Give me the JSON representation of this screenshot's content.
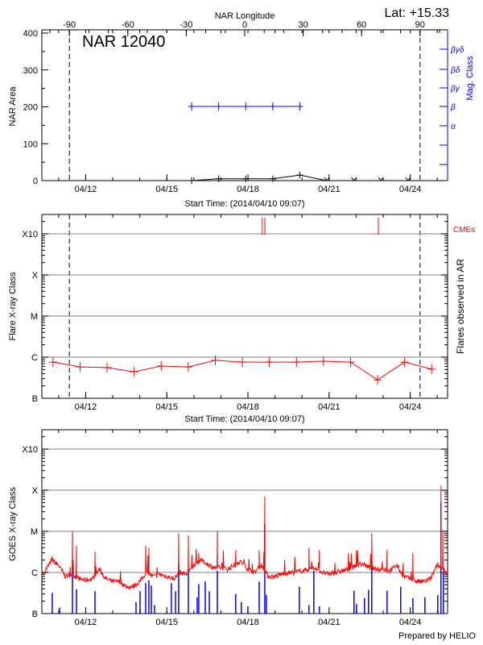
{
  "header": {
    "lat_label": "Lat: +15.33",
    "region_label": "NAR 12040",
    "footer": "Prepared by HELIO"
  },
  "colors": {
    "axis": "#000000",
    "grid": "#999999",
    "mag_class": "#0000ff",
    "flare": "#ff0000",
    "cme": "#ff0000",
    "goes_flux": "#ff0000",
    "goes_events": "#0000ff"
  },
  "chart_data": [
    {
      "type": "line",
      "title": "NAR 12040",
      "top_axis": {
        "label": "NAR Longitude",
        "ticks": [
          "-90",
          "-60",
          "-30",
          "0",
          "30",
          "60",
          "90"
        ],
        "range": [
          -104,
          104
        ]
      },
      "xlabel": "Start Time: (2014/04/10 09:07)",
      "xrange": [
        "2014-04-10 09:07",
        "2014-04-25 09:07"
      ],
      "xticks": [
        "04/12",
        "04/15",
        "04/18",
        "04/21",
        "04/24"
      ],
      "ylabel": "NAR Area",
      "ylim": [
        0,
        400
      ],
      "yticks": [
        "0",
        "100",
        "200",
        "300",
        "400"
      ],
      "right_axis": {
        "label": "Mag. Class",
        "ticks": [
          "α",
          "β",
          "βγ",
          "βδ",
          "βγδ"
        ]
      },
      "limb_longitudes": [
        -90,
        90
      ],
      "area_series": {
        "x": [
          "2014-04-15 22:00",
          "2014-04-16 22:00",
          "2014-04-17 22:00",
          "2014-04-18 22:00",
          "2014-04-19 22:00",
          "2014-04-20 22:00",
          "2014-04-21 22:00",
          "2014-04-22 22:00",
          "2014-04-23 22:00"
        ],
        "values": [
          0,
          5,
          5,
          5,
          15,
          0,
          0,
          0,
          0
        ],
        "flagged_zero": [
          false,
          false,
          false,
          false,
          false,
          true,
          true,
          true,
          true
        ]
      },
      "mag_class_series": {
        "x": [
          "2014-04-15 22:00",
          "2014-04-16 22:00",
          "2014-04-17 22:00",
          "2014-04-18 22:00",
          "2014-04-19 22:00"
        ],
        "values": [
          "β",
          "β",
          "β",
          "β",
          "β"
        ]
      }
    },
    {
      "type": "line",
      "xlabel": "Start Time: (2014/04/10 09:07)",
      "xticks": [
        "04/12",
        "04/15",
        "04/18",
        "04/21",
        "04/24"
      ],
      "ylabel": "Flare X-ray Class",
      "yscale": "log",
      "yticks": [
        "B",
        "C",
        "M",
        "X",
        "X10"
      ],
      "right_label": "Flares observed in AR",
      "cme_label": "CMEs",
      "grid": true,
      "flare_series": {
        "x": [
          "2014-04-10 19:00",
          "2014-04-11 19:00",
          "2014-04-12 19:00",
          "2014-04-13 19:00",
          "2014-04-14 19:00",
          "2014-04-15 19:00",
          "2014-04-16 19:00",
          "2014-04-17 19:00",
          "2014-04-18 19:00",
          "2014-04-19 19:00",
          "2014-04-20 19:00",
          "2014-04-21 19:00",
          "2014-04-22 19:00",
          "2014-04-23 19:00",
          "2014-04-24 19:00"
        ],
        "values": [
          "B7.6",
          "B5.8",
          "B5.6",
          "B4.4",
          "B6.1",
          "B5.8",
          "B8.4",
          "B7.6",
          "B7.6",
          "B7.6",
          "B8.0",
          "B7.6",
          "B2.8",
          "B7.6",
          "B5.1"
        ]
      },
      "cmes": [
        "2014-04-18 12:40",
        "2014-04-18 15:00",
        "2014-04-22 19:40"
      ]
    },
    {
      "type": "line",
      "xticks": [
        "04/12",
        "04/15",
        "04/18",
        "04/21",
        "04/24"
      ],
      "ylabel": "GOES X-ray Class",
      "yscale": "log",
      "yticks": [
        "B",
        "C",
        "M",
        "X",
        "X10"
      ],
      "grid": true,
      "goes_flux": {
        "x": [
          "2014-04-10 12:00",
          "2014-04-10 18:00",
          "2014-04-11 00:00",
          "2014-04-11 06:00",
          "2014-04-11 12:00",
          "2014-04-11 18:00",
          "2014-04-12 00:00",
          "2014-04-12 06:00",
          "2014-04-12 12:00",
          "2014-04-12 18:00",
          "2014-04-13 00:00",
          "2014-04-13 06:00",
          "2014-04-13 12:00",
          "2014-04-13 18:00",
          "2014-04-14 00:00",
          "2014-04-14 06:00",
          "2014-04-14 12:00",
          "2014-04-14 18:00",
          "2014-04-15 00:00",
          "2014-04-15 06:00",
          "2014-04-15 12:00",
          "2014-04-15 18:00",
          "2014-04-16 00:00",
          "2014-04-16 06:00",
          "2014-04-16 12:00",
          "2014-04-16 18:00",
          "2014-04-17 00:00",
          "2014-04-17 06:00",
          "2014-04-17 12:00",
          "2014-04-17 18:00",
          "2014-04-18 00:00",
          "2014-04-18 06:00",
          "2014-04-18 12:00",
          "2014-04-18 18:00",
          "2014-04-19 00:00",
          "2014-04-19 06:00",
          "2014-04-19 12:00",
          "2014-04-19 18:00",
          "2014-04-20 00:00",
          "2014-04-20 06:00",
          "2014-04-20 12:00",
          "2014-04-20 18:00",
          "2014-04-21 00:00",
          "2014-04-21 06:00",
          "2014-04-21 12:00",
          "2014-04-21 18:00",
          "2014-04-22 00:00",
          "2014-04-22 06:00",
          "2014-04-22 12:00",
          "2014-04-22 18:00",
          "2014-04-23 00:00",
          "2014-04-23 06:00",
          "2014-04-23 12:00",
          "2014-04-23 18:00",
          "2014-04-24 00:00",
          "2014-04-24 06:00",
          "2014-04-24 12:00",
          "2014-04-24 18:00",
          "2014-04-25 00:00",
          "2014-04-25 06:00",
          "2014-04-25 09:00"
        ],
        "values": [
          "C1.1",
          "C2.0",
          "C1.5",
          "B8",
          "B9",
          "B7",
          "B6.5",
          "B7",
          "C1.2",
          "B7",
          "B6",
          "B6",
          "B4.5",
          "B4.5",
          "B6",
          "C1.0",
          "B8",
          "B9",
          "B8",
          "B7",
          "C1.0",
          "B9",
          "C1.5",
          "C2.0",
          "C1.6",
          "C1.3",
          "C1.3",
          "C1.2",
          "C1.5",
          "C1.8",
          "C1.2",
          "C1.0",
          "C1.5",
          "B8",
          "B8",
          "B9",
          "C1.0",
          "C1.0",
          "C1.1",
          "C1.2",
          "C1.3",
          "C1.0",
          "B9",
          "C1.0",
          "C1.1",
          "C1.2",
          "C1.5",
          "C1.6",
          "C1.3",
          "C1.2",
          "C1.2",
          "C1.1",
          "C1.5",
          "B8",
          "B7",
          "B6",
          "B6",
          "B7",
          "C1.5",
          "C1.2",
          "B9"
        ]
      },
      "goes_peaks": {
        "x": [
          "2014-04-10 18:20",
          "2014-04-11 12:15",
          "2014-04-11 15:50",
          "2014-04-12 08:15",
          "2014-04-14 05:15",
          "2014-04-14 08:05",
          "2014-04-15 10:30",
          "2014-04-15 19:05",
          "2014-04-16 04:20",
          "2014-04-16 20:50",
          "2014-04-17 13:05",
          "2014-04-18 09:55",
          "2014-04-18 14:55",
          "2014-04-20 06:05",
          "2014-04-20 15:25",
          "2014-04-22 00:20",
          "2014-04-22 13:50",
          "2014-04-23 03:25",
          "2014-04-24 02:20",
          "2014-04-25 03:15",
          "2014-04-25 05:00"
        ],
        "values": [
          "C2.5",
          "M1.0",
          "C4.5",
          "C3.2",
          "C4.5",
          "C4.0",
          "C9.0",
          "C8.0",
          "C3.0",
          "M1.0",
          "C3.5",
          "C3.5",
          "M7.0",
          "C4.0",
          "C3.5",
          "C3.5",
          "C9.0",
          "C3.5",
          "C3.0",
          "X1.3",
          "M1.0"
        ]
      },
      "flare_events": {
        "x": [
          "2014-04-10 18:20",
          "2014-04-11 00:50",
          "2014-04-11 12:15",
          "2014-04-11 15:50",
          "2014-04-12 08:15",
          "2014-04-13 20:40",
          "2014-04-14 00:15",
          "2014-04-14 05:15",
          "2014-04-14 08:05",
          "2014-04-14 10:15",
          "2014-04-14 13:05",
          "2014-04-15 04:05",
          "2014-04-15 07:40",
          "2014-04-15 10:30",
          "2014-04-15 19:05",
          "2014-04-16 02:55",
          "2014-04-16 04:20",
          "2014-04-16 10:05",
          "2014-04-16 13:40",
          "2014-04-16 20:50",
          "2014-04-17 13:05",
          "2014-04-17 18:05",
          "2014-04-17 23:55",
          "2014-04-18 09:55",
          "2014-04-18 14:55",
          "2014-04-18 16:20",
          "2014-04-19 21:35",
          "2014-04-20 06:05",
          "2014-04-20 10:25",
          "2014-04-20 15:25",
          "2014-04-21 22:05",
          "2014-04-22 00:20",
          "2014-04-22 07:25",
          "2014-04-22 11:00",
          "2014-04-22 13:50",
          "2014-04-23 03:25",
          "2014-04-23 15:30",
          "2014-04-24 02:20",
          "2014-04-24 13:00",
          "2014-04-25 00:25",
          "2014-04-25 03:15",
          "2014-04-25 05:25"
        ],
        "values": [
          "B3.2",
          "B1.4",
          "C1.6",
          "B3.9",
          "B3.5",
          "B1.9",
          "B3.5",
          "B5.5",
          "B6.4",
          "B4.8",
          "B1.6",
          "B5.5",
          "B3.5",
          "C1.6",
          "C1.2",
          "B2.5",
          "B5.2",
          "B6.0",
          "B3.5",
          "C1.1",
          "B3.0",
          "B1.9",
          "B1.5",
          "B6.0",
          "M1.5",
          "B2.8",
          "B4.5",
          "B1.6",
          "C1.1",
          "B1.5",
          "B3.6",
          "B1.7",
          "B2.4",
          "B3.8",
          "C1.6",
          "B3.6",
          "B4.5",
          "B2.4",
          "B2.5",
          "B2.8",
          "M5.0",
          "C1.0"
        ]
      }
    }
  ]
}
